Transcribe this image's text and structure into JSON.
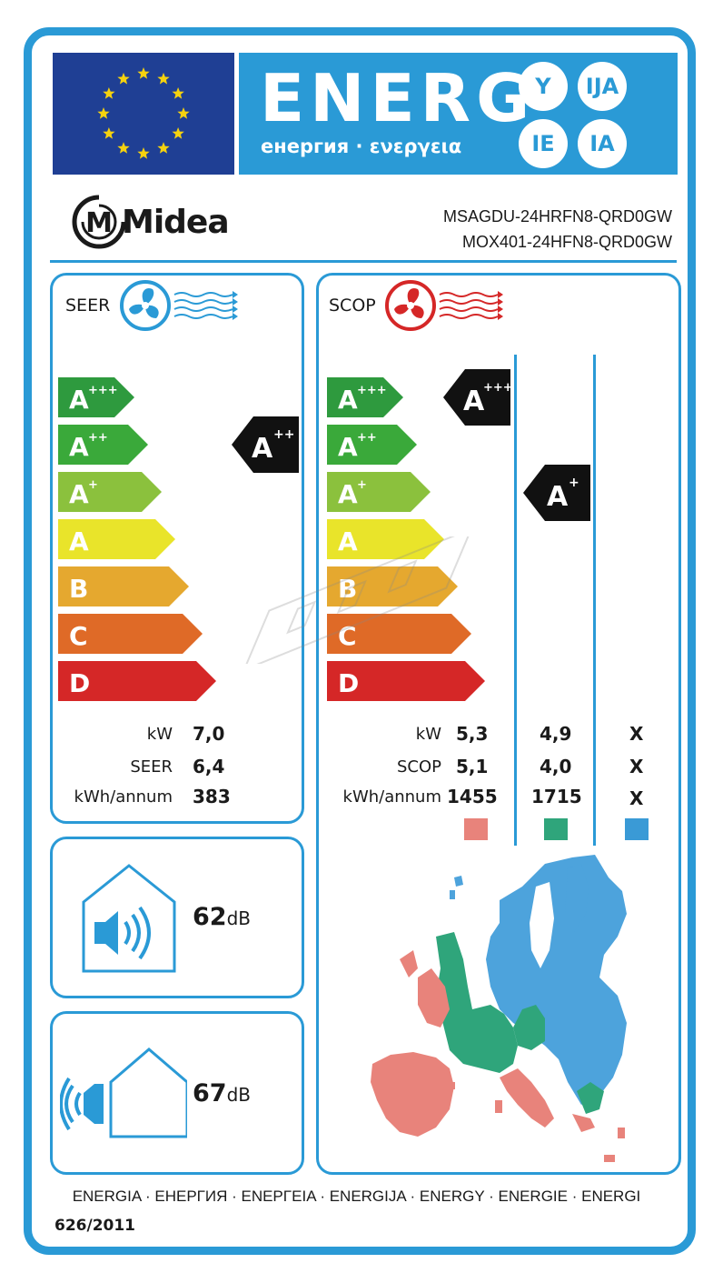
{
  "header": {
    "energy_word": "ENERG",
    "energy_sub": "енергия · ενεργεια",
    "suffixes": [
      "Y",
      "IJA",
      "IE",
      "IA"
    ]
  },
  "brand": {
    "name": "Midea",
    "logo_letter": "M"
  },
  "models": {
    "indoor": "MSAGDU-24HRFN8-QRD0GW",
    "outdoor": "MOX401-24HFN8-QRD0GW"
  },
  "classes": {
    "letters": [
      {
        "base": "A",
        "sup": "+++",
        "color": "#2e9a3e"
      },
      {
        "base": "A",
        "sup": "++",
        "color": "#3aa93a"
      },
      {
        "base": "A",
        "sup": "+",
        "color": "#8bc13d"
      },
      {
        "base": "A",
        "sup": "",
        "color": "#e9e42a"
      },
      {
        "base": "B",
        "sup": "",
        "color": "#e5a82f"
      },
      {
        "base": "C",
        "sup": "",
        "color": "#df6a27"
      },
      {
        "base": "D",
        "sup": "",
        "color": "#d52727"
      }
    ]
  },
  "seer": {
    "title": "SEER",
    "rating": {
      "base": "A",
      "sup": "++"
    },
    "rows": [
      {
        "label": "kW",
        "value": "7,0"
      },
      {
        "label": "SEER",
        "value": "6,4"
      },
      {
        "label": "kWh/annum",
        "value": "383"
      }
    ]
  },
  "scop": {
    "title": "SCOP",
    "rating_warm": {
      "base": "A",
      "sup": "+++"
    },
    "rating_average": {
      "base": "A",
      "sup": "+"
    },
    "labels": [
      "kW",
      "SCOP",
      "kWh/annum"
    ],
    "columns": [
      {
        "values": [
          "5,3",
          "5,1",
          "1455"
        ],
        "color": "#e8837b"
      },
      {
        "values": [
          "4,9",
          "4,0",
          "1715"
        ],
        "color": "#2fa57b"
      },
      {
        "values": [
          "X",
          "X",
          "X"
        ],
        "color": "#3a9ad6"
      }
    ]
  },
  "noise_indoor": {
    "value": "62",
    "unit": "dB"
  },
  "noise_outdoor": {
    "value": "67",
    "unit": "dB"
  },
  "colors": {
    "accent": "#2a9ad6",
    "eu_blue": "#1f3f94",
    "star": "#f5d20f",
    "cool_fan": "#2a9ad6",
    "heat_fan": "#d52727"
  },
  "footer": {
    "languages": "ENERGIA · ЕНЕРГИЯ · ΕΝΕΡΓΕΙΑ · ENERGIJA · ENERGY · ENERGIE · ENERGI",
    "regulation": "626/2011"
  }
}
